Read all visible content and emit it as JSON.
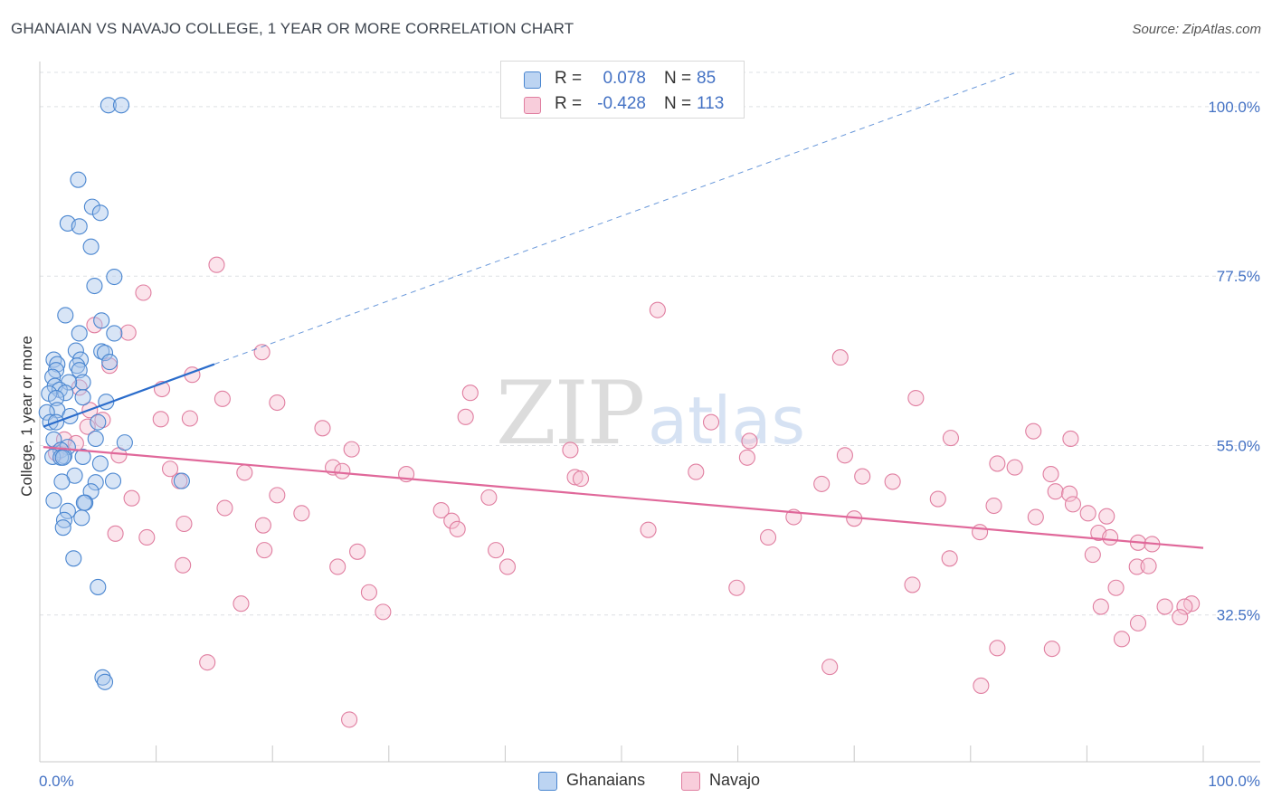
{
  "header": {
    "title": "GHANAIAN VS NAVAJO COLLEGE, 1 YEAR OR MORE CORRELATION CHART",
    "source": "Source: ZipAtlas.com"
  },
  "watermark": {
    "zip": "ZIP",
    "atlas": "atlas"
  },
  "legend": {
    "r_label": "R =",
    "n_label": "N =",
    "items": [
      {
        "r": "0.078",
        "n": "85"
      },
      {
        "r": "-0.428",
        "n": "113"
      }
    ]
  },
  "colors": {
    "ghanaian_fill": "#a9c6ec",
    "ghanaian_stroke": "#4a86d0",
    "ghanaian_line": "#2a6ccb",
    "navajo_fill": "#f6c2d3",
    "navajo_stroke": "#e07ea0",
    "navajo_line": "#e0689a",
    "tick_text": "#4472c4",
    "grid": "#dde0e4"
  },
  "chart_data": {
    "type": "scatter",
    "xlabel": "",
    "ylabel": "College, 1 year or more",
    "xlim": [
      0,
      100
    ],
    "ylim": [
      13,
      106
    ],
    "x_tick_labels": [
      {
        "value": 0,
        "label": "0.0%"
      },
      {
        "value": 100,
        "label": "100.0%"
      }
    ],
    "y_ticks": [
      {
        "value": 100,
        "label": "100.0%"
      },
      {
        "value": 77.5,
        "label": "77.5%"
      },
      {
        "value": 55,
        "label": "55.0%"
      },
      {
        "value": 32.5,
        "label": "32.5%"
      }
    ],
    "grid": true,
    "legend_position": "top-center",
    "series": [
      {
        "name": "Ghanaians",
        "r": 0.078,
        "n": 85,
        "trend_solid": {
          "x": [
            0.3,
            15
          ],
          "y": [
            57.5,
            65.8
          ]
        },
        "trend_dashed": {
          "x": [
            15,
            84
          ],
          "y": [
            65.8,
            104.6
          ]
        },
        "points": [
          [
            5.9,
            100.2
          ],
          [
            7.0,
            100.2
          ],
          [
            3.3,
            90.3
          ],
          [
            4.5,
            86.7
          ],
          [
            5.2,
            85.9
          ],
          [
            2.4,
            84.5
          ],
          [
            3.4,
            84.1
          ],
          [
            4.4,
            81.4
          ],
          [
            6.4,
            77.4
          ],
          [
            4.7,
            76.2
          ],
          [
            2.2,
            72.3
          ],
          [
            5.3,
            71.6
          ],
          [
            3.4,
            69.9
          ],
          [
            6.4,
            69.9
          ],
          [
            3.1,
            67.6
          ],
          [
            5.3,
            67.5
          ],
          [
            5.6,
            67.3
          ],
          [
            3.5,
            66.4
          ],
          [
            1.2,
            66.4
          ],
          [
            3.2,
            65.6
          ],
          [
            6.0,
            66.1
          ],
          [
            1.5,
            65.8
          ],
          [
            3.4,
            65.0
          ],
          [
            1.4,
            65.0
          ],
          [
            1.1,
            64.1
          ],
          [
            3.7,
            63.4
          ],
          [
            2.5,
            63.4
          ],
          [
            1.3,
            62.9
          ],
          [
            1.7,
            62.4
          ],
          [
            2.2,
            62.0
          ],
          [
            0.8,
            61.9
          ],
          [
            1.4,
            61.3
          ],
          [
            3.7,
            61.4
          ],
          [
            5.7,
            60.8
          ],
          [
            1.5,
            59.7
          ],
          [
            0.6,
            59.4
          ],
          [
            2.6,
            58.9
          ],
          [
            0.9,
            58.1
          ],
          [
            1.4,
            58.1
          ],
          [
            5.0,
            58.1
          ],
          [
            1.2,
            55.8
          ],
          [
            4.8,
            55.9
          ],
          [
            7.3,
            55.4
          ],
          [
            2.4,
            54.8
          ],
          [
            1.8,
            54.4
          ],
          [
            2.1,
            53.6
          ],
          [
            1.1,
            53.5
          ],
          [
            3.7,
            53.5
          ],
          [
            1.8,
            53.4
          ],
          [
            2.0,
            53.4
          ],
          [
            5.2,
            52.6
          ],
          [
            3.0,
            51.0
          ],
          [
            1.9,
            50.2
          ],
          [
            6.3,
            50.3
          ],
          [
            4.8,
            50.1
          ],
          [
            12.2,
            50.3
          ],
          [
            4.4,
            48.9
          ],
          [
            1.2,
            47.7
          ],
          [
            3.9,
            47.4
          ],
          [
            3.8,
            47.4
          ],
          [
            2.4,
            46.3
          ],
          [
            3.6,
            45.4
          ],
          [
            2.1,
            45.1
          ],
          [
            2.0,
            44.1
          ],
          [
            2.9,
            40.0
          ],
          [
            5.0,
            36.2
          ],
          [
            5.4,
            24.2
          ],
          [
            5.6,
            23.6
          ]
        ]
      },
      {
        "name": "Navajo",
        "r": -0.428,
        "n": 113,
        "trend": {
          "x": [
            0.3,
            100
          ],
          "y": [
            54.8,
            41.4
          ]
        },
        "points": [
          [
            15.2,
            79.0
          ],
          [
            8.9,
            75.3
          ],
          [
            53.1,
            73.0
          ],
          [
            4.7,
            71.0
          ],
          [
            7.6,
            70.0
          ],
          [
            19.1,
            67.4
          ],
          [
            68.8,
            66.7
          ],
          [
            6.0,
            65.6
          ],
          [
            13.1,
            64.4
          ],
          [
            3.4,
            62.7
          ],
          [
            10.5,
            62.5
          ],
          [
            37.0,
            62.0
          ],
          [
            15.7,
            61.2
          ],
          [
            75.3,
            61.3
          ],
          [
            20.4,
            60.7
          ],
          [
            4.3,
            59.7
          ],
          [
            10.4,
            58.5
          ],
          [
            12.9,
            58.6
          ],
          [
            36.6,
            58.8
          ],
          [
            5.4,
            58.4
          ],
          [
            57.7,
            58.1
          ],
          [
            4.1,
            57.5
          ],
          [
            24.3,
            57.3
          ],
          [
            85.4,
            56.9
          ],
          [
            78.3,
            56.0
          ],
          [
            2.1,
            55.8
          ],
          [
            88.6,
            55.9
          ],
          [
            3.1,
            55.3
          ],
          [
            61.0,
            55.6
          ],
          [
            26.8,
            54.5
          ],
          [
            45.6,
            54.4
          ],
          [
            1.4,
            54.0
          ],
          [
            69.2,
            53.7
          ],
          [
            6.8,
            53.7
          ],
          [
            60.8,
            53.4
          ],
          [
            82.3,
            52.6
          ],
          [
            83.8,
            52.1
          ],
          [
            11.2,
            51.9
          ],
          [
            25.2,
            52.1
          ],
          [
            17.6,
            51.4
          ],
          [
            26.0,
            51.6
          ],
          [
            56.4,
            51.5
          ],
          [
            31.5,
            51.2
          ],
          [
            86.9,
            51.2
          ],
          [
            46.0,
            50.8
          ],
          [
            70.7,
            50.9
          ],
          [
            46.5,
            50.6
          ],
          [
            12.0,
            50.3
          ],
          [
            67.2,
            49.9
          ],
          [
            73.3,
            50.2
          ],
          [
            87.3,
            48.9
          ],
          [
            88.5,
            48.6
          ],
          [
            20.4,
            48.4
          ],
          [
            77.2,
            47.9
          ],
          [
            7.9,
            48.0
          ],
          [
            38.6,
            48.1
          ],
          [
            88.8,
            47.2
          ],
          [
            82.0,
            47.0
          ],
          [
            15.9,
            46.7
          ],
          [
            34.5,
            46.4
          ],
          [
            90.1,
            46.0
          ],
          [
            22.5,
            46.0
          ],
          [
            91.7,
            45.6
          ],
          [
            85.6,
            45.5
          ],
          [
            64.8,
            45.5
          ],
          [
            35.4,
            45.0
          ],
          [
            70.0,
            45.3
          ],
          [
            12.4,
            44.6
          ],
          [
            19.2,
            44.4
          ],
          [
            35.9,
            43.9
          ],
          [
            52.3,
            43.8
          ],
          [
            91.0,
            43.4
          ],
          [
            6.5,
            43.3
          ],
          [
            80.8,
            43.5
          ],
          [
            9.2,
            42.8
          ],
          [
            62.6,
            42.8
          ],
          [
            92.0,
            42.8
          ],
          [
            94.4,
            42.1
          ],
          [
            95.6,
            41.9
          ],
          [
            39.2,
            41.1
          ],
          [
            19.3,
            41.1
          ],
          [
            27.3,
            40.9
          ],
          [
            90.5,
            40.5
          ],
          [
            78.2,
            40.0
          ],
          [
            12.3,
            39.1
          ],
          [
            25.6,
            38.9
          ],
          [
            40.2,
            38.9
          ],
          [
            94.3,
            38.9
          ],
          [
            95.3,
            39.0
          ],
          [
            75.0,
            36.5
          ],
          [
            92.5,
            36.1
          ],
          [
            28.3,
            35.5
          ],
          [
            59.9,
            36.1
          ],
          [
            91.2,
            33.6
          ],
          [
            96.7,
            33.6
          ],
          [
            99.0,
            34.0
          ],
          [
            17.3,
            34.0
          ],
          [
            29.5,
            32.9
          ],
          [
            98.4,
            33.6
          ],
          [
            98.0,
            32.2
          ],
          [
            94.4,
            31.4
          ],
          [
            93.0,
            29.3
          ],
          [
            82.3,
            28.1
          ],
          [
            87.0,
            28.0
          ],
          [
            14.4,
            26.2
          ],
          [
            67.9,
            25.6
          ],
          [
            80.9,
            23.1
          ],
          [
            26.6,
            18.6
          ]
        ]
      }
    ]
  }
}
